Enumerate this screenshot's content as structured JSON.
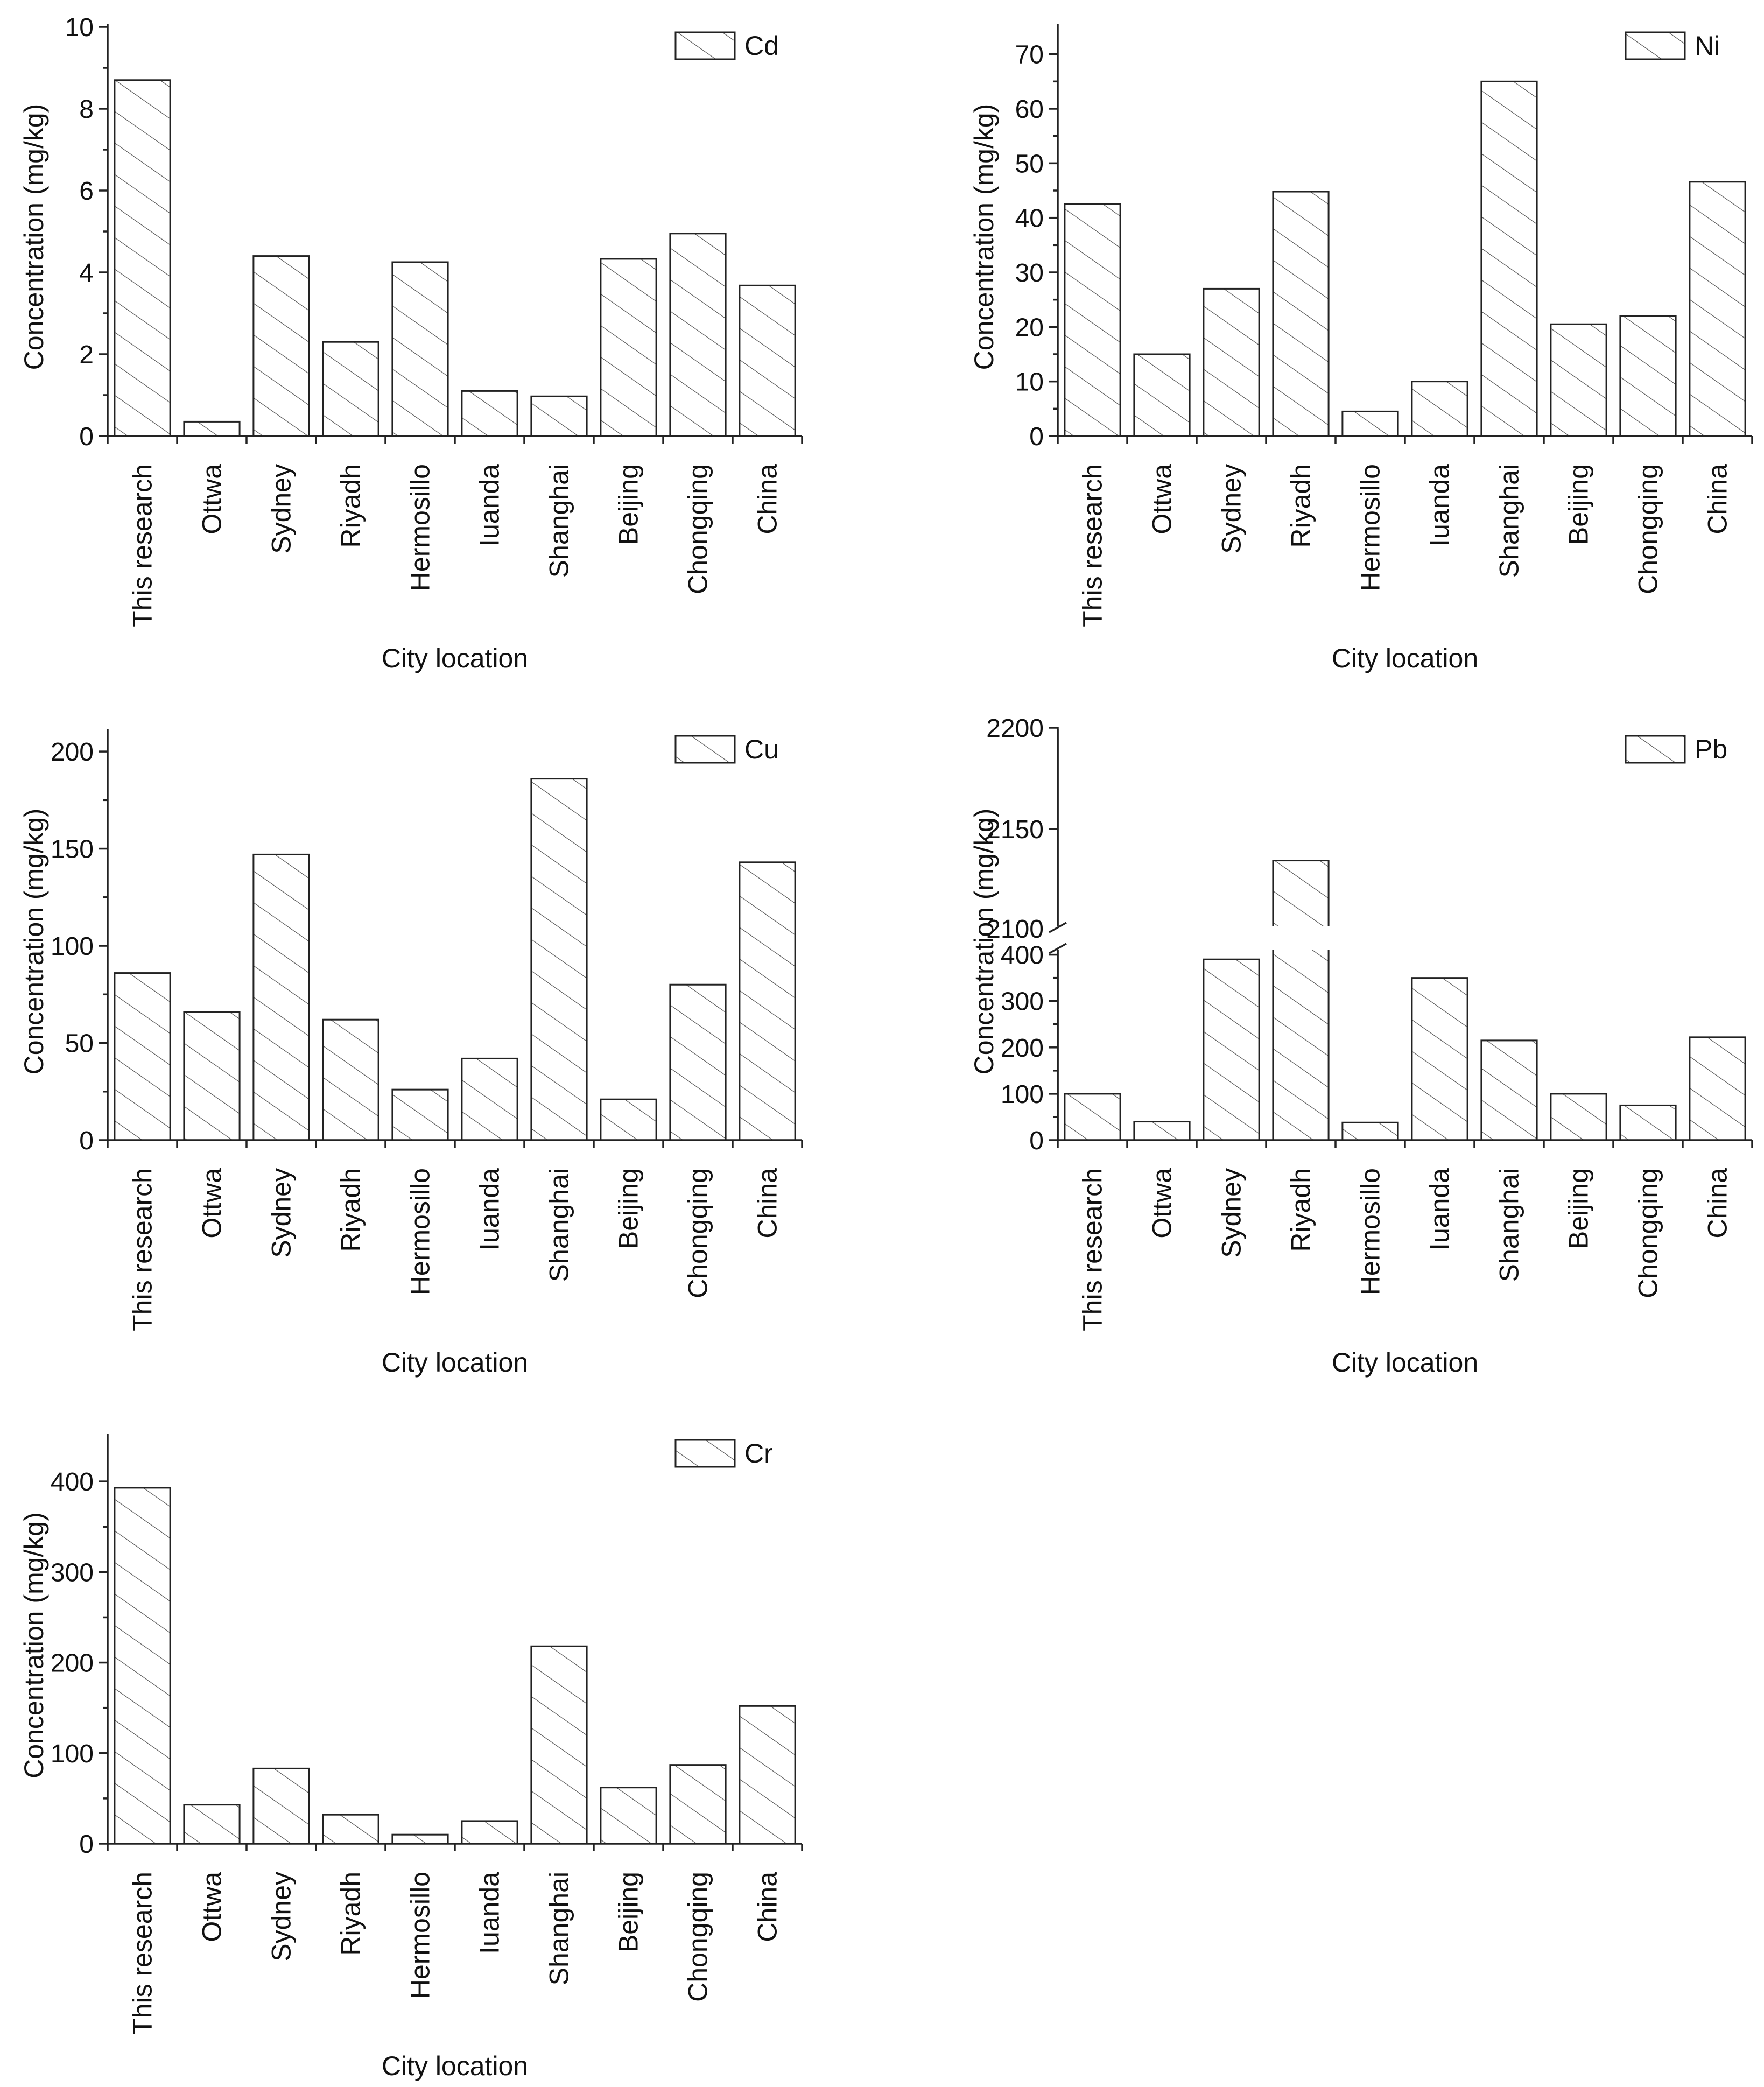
{
  "categories": [
    "This research",
    "Ottwa",
    "Sydney",
    "Riyadh",
    "Hermosillo",
    "Iuanda",
    "Shanghai",
    "Beijing",
    "Chongqing",
    "China"
  ],
  "bar_stroke_color": "#222222",
  "hatch_color": "#555555",
  "chart_data": [
    {
      "type": "bar",
      "legend": "Cd",
      "xlabel": "City location",
      "ylabel": "Concentration (mg/kg)",
      "ylim": [
        0,
        10
      ],
      "yticks": [
        0,
        2,
        4,
        6,
        8,
        10
      ],
      "values": [
        8.7,
        0.35,
        4.4,
        2.3,
        4.25,
        1.1,
        0.97,
        4.33,
        4.95,
        3.68
      ]
    },
    {
      "type": "bar",
      "legend": "Ni",
      "xlabel": "City location",
      "ylabel": "Concentration (mg/kg)",
      "ylim": [
        0,
        75
      ],
      "yticks": [
        0,
        10,
        20,
        30,
        40,
        50,
        60,
        70
      ],
      "values": [
        42.5,
        15.0,
        27.0,
        44.8,
        4.5,
        10.0,
        65.0,
        20.5,
        22.0,
        46.6
      ]
    },
    {
      "type": "bar",
      "legend": "Cu",
      "xlabel": "City location",
      "ylabel": "Concentration (mg/kg)",
      "ylim": [
        0,
        210
      ],
      "yticks": [
        0,
        50,
        100,
        150,
        200
      ],
      "values": [
        86,
        66,
        147,
        62,
        26,
        42,
        186,
        21,
        80,
        143
      ]
    },
    {
      "type": "bar",
      "legend": "Pb",
      "xlabel": "City location",
      "ylabel": "Concentration (mg/kg)",
      "broken_axis": true,
      "lower_ylim": [
        0,
        410
      ],
      "lower_yticks": [
        0,
        100,
        200,
        300,
        400
      ],
      "upper_ylim": [
        2100,
        2200
      ],
      "upper_yticks": [
        2100,
        2150,
        2200
      ],
      "values": [
        100,
        40,
        390,
        2133,
        38,
        350,
        215,
        100,
        75,
        222
      ]
    },
    {
      "type": "bar",
      "legend": "Cr",
      "xlabel": "City location",
      "ylabel": "Concentration (mg/kg)",
      "ylim": [
        0,
        450
      ],
      "yticks": [
        0,
        100,
        200,
        300,
        400
      ],
      "values": [
        393,
        43,
        83,
        32,
        10,
        25,
        218,
        62,
        87,
        152
      ]
    }
  ]
}
